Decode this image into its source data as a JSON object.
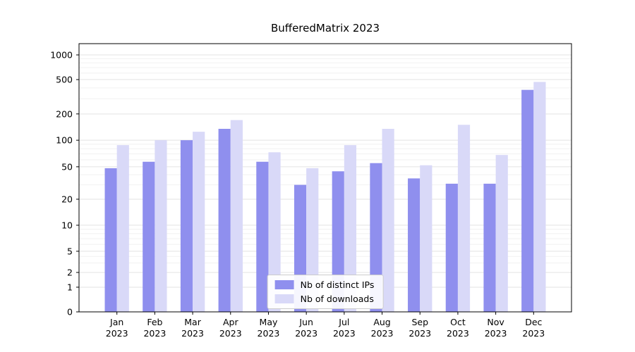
{
  "chart_data": {
    "type": "bar",
    "title": "BufferedMatrix 2023",
    "categories": [
      "Jan 2023",
      "Feb 2023",
      "Mar 2023",
      "Apr 2023",
      "May 2023",
      "Jun 2023",
      "Jul 2023",
      "Aug 2023",
      "Sep 2023",
      "Oct 2023",
      "Nov 2023",
      "Dec 2023"
    ],
    "series": [
      {
        "name": "Nb of distinct IPs",
        "color": "#8f8fee",
        "values": [
          48,
          57,
          100,
          135,
          57,
          30,
          44,
          55,
          36,
          31,
          31,
          380
        ]
      },
      {
        "name": "Nb of downloads",
        "color": "#d9d9f8",
        "values": [
          88,
          100,
          125,
          170,
          73,
          48,
          88,
          135,
          52,
          150,
          68,
          470
        ]
      }
    ],
    "yticks": [
      0,
      1,
      2,
      5,
      10,
      20,
      50,
      100,
      200,
      500,
      1000
    ],
    "xlabel": "",
    "ylabel": "",
    "yscale": "symlog",
    "ylim": [
      0,
      1000
    ],
    "grid": true,
    "legend_position": "lower center"
  }
}
